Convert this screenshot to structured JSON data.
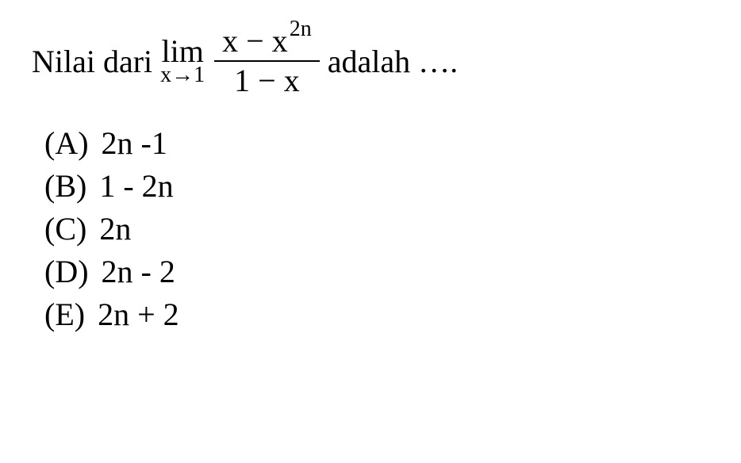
{
  "question": {
    "prefix_text": "Nilai dari",
    "lim_word": "lim",
    "lim_sub": "x→1",
    "numerator_base1": "x − x",
    "numerator_exp": "2n",
    "denominator": "1 − x",
    "suffix_text": "adalah ….",
    "font_size_main": 40,
    "font_size_sub": 28,
    "text_color": "#000000",
    "background_color": "#ffffff"
  },
  "options": [
    {
      "label": "(A)",
      "value": "2n -1"
    },
    {
      "label": "(B)",
      "value": "1 - 2n"
    },
    {
      "label": "(C)",
      "value": "2n"
    },
    {
      "label": "(D)",
      "value": "2n - 2"
    },
    {
      "label": "(E)",
      "value": "2n + 2"
    }
  ]
}
